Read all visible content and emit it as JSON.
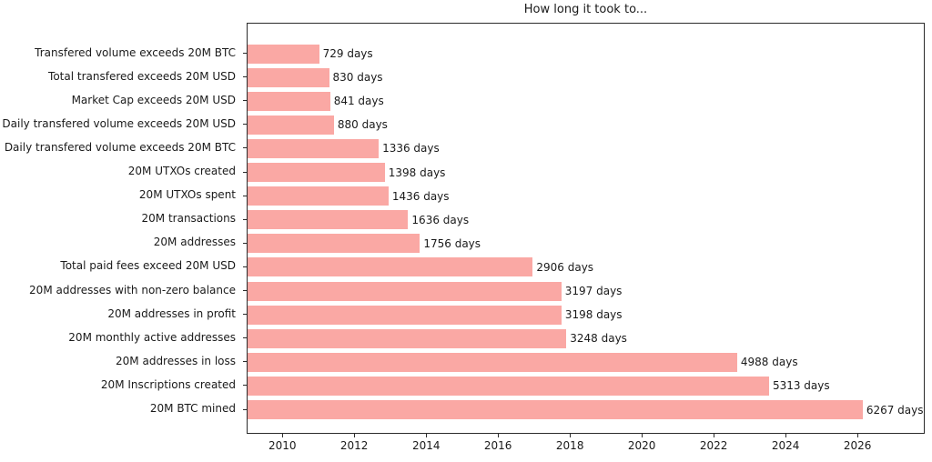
{
  "figure": {
    "background": "#ffffff",
    "text_color": "#1a1a1a",
    "spine_color": "#2b2b2b"
  },
  "chart_data": {
    "type": "bar",
    "orientation": "horizontal",
    "title": "How long it took to...",
    "xlabel": "",
    "ylabel": "",
    "grid": false,
    "bar_color": "#faa8a4",
    "value_suffix": " days",
    "categories": [
      "Transfered volume exceeds 20M BTC",
      "Total transfered exceeds 20M USD",
      "Market Cap exceeds 20M USD",
      "Daily transfered volume exceeds 20M USD",
      "Daily transfered volume exceeds 20M BTC",
      "20M UTXOs created",
      "20M UTXOs spent",
      "20M transactions",
      "20M addresses",
      "Total paid fees exceed 20M USD",
      "20M addresses with non-zero balance",
      "20M addresses in profit",
      "20M monthly active addresses",
      "20M addresses in loss",
      "20M Inscriptions created",
      "20M BTC mined"
    ],
    "values": [
      729,
      830,
      841,
      880,
      1336,
      1398,
      1436,
      1636,
      1756,
      2906,
      3197,
      3198,
      3248,
      4988,
      5313,
      6267
    ],
    "value_labels": [
      "729 days",
      "830 days",
      "841 days",
      "880 days",
      "1336 days",
      "1398 days",
      "1436 days",
      "1636 days",
      "1756 days",
      "2906 days",
      "3197 days",
      "3198 days",
      "3248 days",
      "4988 days",
      "5313 days",
      "6267 days"
    ],
    "x_axis": {
      "unit": "days since start, shown as calendar years",
      "range_days": [
        0,
        6890
      ],
      "ticks": [
        {
          "label": "2010",
          "day": 363
        },
        {
          "label": "2012",
          "day": 1093
        },
        {
          "label": "2014",
          "day": 1824
        },
        {
          "label": "2016",
          "day": 2554
        },
        {
          "label": "2018",
          "day": 3285
        },
        {
          "label": "2020",
          "day": 4015
        },
        {
          "label": "2022",
          "day": 4746
        },
        {
          "label": "2024",
          "day": 5476
        },
        {
          "label": "2026",
          "day": 6207
        }
      ]
    },
    "legend": null
  }
}
